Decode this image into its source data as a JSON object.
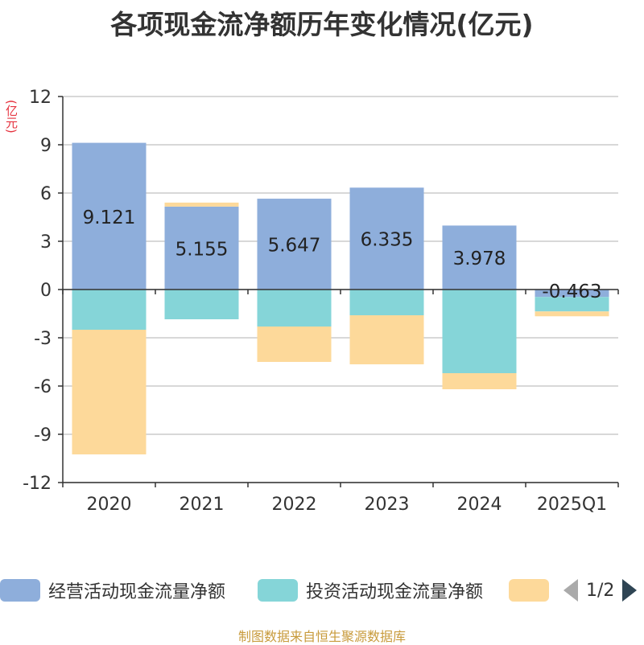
{
  "title": "各项现金流净额历年变化情况(亿元)",
  "source": "制图数据来自恒生聚源数据库",
  "legend_pager": "1/2",
  "colors": {
    "operating": "#8eaedb",
    "investing": "#85d5d8",
    "financing": "#fdd99a",
    "axis": "#333333",
    "grid": "#cccccc",
    "unit": "#e5323e"
  },
  "chart_data": {
    "type": "bar",
    "stacked": true,
    "unit_label": "(亿元)",
    "categories": [
      "2020",
      "2021",
      "2022",
      "2023",
      "2024",
      "2025Q1"
    ],
    "ylim": [
      -12,
      12
    ],
    "yticks": [
      12,
      9,
      6,
      3,
      0,
      -3,
      -6,
      -9,
      -12
    ],
    "grid": true,
    "legend_position": "bottom",
    "series": [
      {
        "name": "经营活动现金流量净额",
        "color": "#8eaedb",
        "values": [
          9.121,
          5.155,
          5.647,
          6.335,
          3.978,
          -0.463
        ]
      },
      {
        "name": "投资活动现金流量净额",
        "color": "#85d5d8",
        "values": [
          -2.5,
          -1.85,
          -2.3,
          -1.6,
          -5.2,
          -0.9
        ]
      },
      {
        "name": "",
        "color": "#fdd99a",
        "values": [
          -7.75,
          0.25,
          -2.2,
          -3.05,
          -1.0,
          -0.3
        ]
      }
    ],
    "data_labels": [
      "9.121",
      "5.155",
      "5.647",
      "6.335",
      "3.978",
      "-0.463"
    ]
  }
}
